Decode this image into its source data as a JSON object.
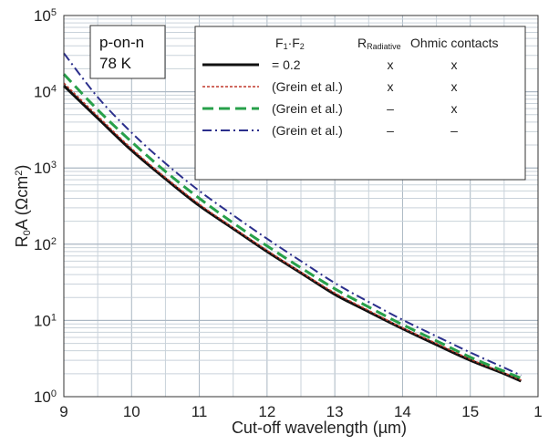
{
  "chart_data": {
    "type": "line",
    "xlabel": "Cut-off wavelength (µm)",
    "ylabel_main": "R",
    "ylabel_sub": "0",
    "ylabel_rest": "A (Ωcm",
    "ylabel_sup": "2",
    "ylabel_end": ")",
    "xlim": [
      9,
      16
    ],
    "ylim": [
      1,
      100000
    ],
    "yscale": "log",
    "grid": true,
    "x_ticks": [
      "9",
      "10",
      "11",
      "12",
      "13",
      "14",
      "15",
      "1"
    ],
    "y_ticks": [
      {
        "base": "10",
        "exp": "0"
      },
      {
        "base": "10",
        "exp": "1"
      },
      {
        "base": "10",
        "exp": "2"
      },
      {
        "base": "10",
        "exp": "3"
      },
      {
        "base": "10",
        "exp": "4"
      },
      {
        "base": "10",
        "exp": "5"
      }
    ],
    "inset": {
      "line1": "p-on-n",
      "line2": "78 K"
    },
    "legend": {
      "placement": "top-right",
      "header_f": "F",
      "header_f_sub1": "1",
      "header_f_dot": "·F",
      "header_f_sub2": "2",
      "header_r": "R",
      "header_r_sub": "Radiative",
      "header_ohmic": "Ohmic contacts"
    },
    "series": [
      {
        "label": "= 0.2",
        "radiative": "x",
        "ohmic": "x",
        "color": "#111111",
        "dash": "",
        "width": 3,
        "x": [
          9.0,
          9.5,
          10.0,
          10.5,
          11.0,
          11.5,
          12.0,
          12.5,
          13.0,
          13.5,
          14.0,
          14.5,
          15.0,
          15.5,
          15.75
        ],
        "y": [
          12000,
          4500,
          1700,
          720,
          320,
          160,
          80,
          42,
          22,
          13,
          7.8,
          4.8,
          3.0,
          2.0,
          1.6
        ]
      },
      {
        "label": "(Grein et al.)",
        "radiative": "x",
        "ohmic": "x",
        "color": "#c0392b",
        "dash": "3 2",
        "width": 1.5,
        "x": [
          9.0,
          9.5,
          10.0,
          10.5,
          11.0,
          11.5,
          12.0,
          12.5,
          13.0,
          13.5,
          14.0,
          14.5,
          15.0,
          15.5,
          15.75
        ],
        "y": [
          13000,
          4800,
          1800,
          750,
          335,
          165,
          83,
          43,
          23,
          13.5,
          8.0,
          5.0,
          3.1,
          2.05,
          1.65
        ]
      },
      {
        "label": "(Grein et al.)",
        "radiative": "–",
        "ohmic": "x",
        "color": "#27a04a",
        "dash": "12 6",
        "width": 3,
        "x": [
          9.0,
          9.5,
          10.0,
          10.5,
          11.0,
          11.5,
          12.0,
          12.5,
          13.0,
          13.5,
          14.0,
          14.5,
          15.0,
          15.5,
          15.75
        ],
        "y": [
          17000,
          5800,
          2200,
          900,
          400,
          190,
          95,
          49,
          26,
          15,
          8.8,
          5.4,
          3.3,
          2.15,
          1.75
        ]
      },
      {
        "label": "(Grein et al.)",
        "radiative": "–",
        "ohmic": "–",
        "color": "#2b2f8c",
        "dash": "10 4 2 4",
        "width": 2,
        "x": [
          9.0,
          9.5,
          10.0,
          10.5,
          11.0,
          11.5,
          12.0,
          12.5,
          13.0,
          13.5,
          14.0,
          14.5,
          15.0,
          15.5,
          15.75
        ],
        "y": [
          32000,
          8500,
          2900,
          1150,
          500,
          240,
          118,
          60,
          31,
          17.5,
          10.2,
          6.2,
          3.8,
          2.4,
          1.9
        ]
      }
    ]
  }
}
